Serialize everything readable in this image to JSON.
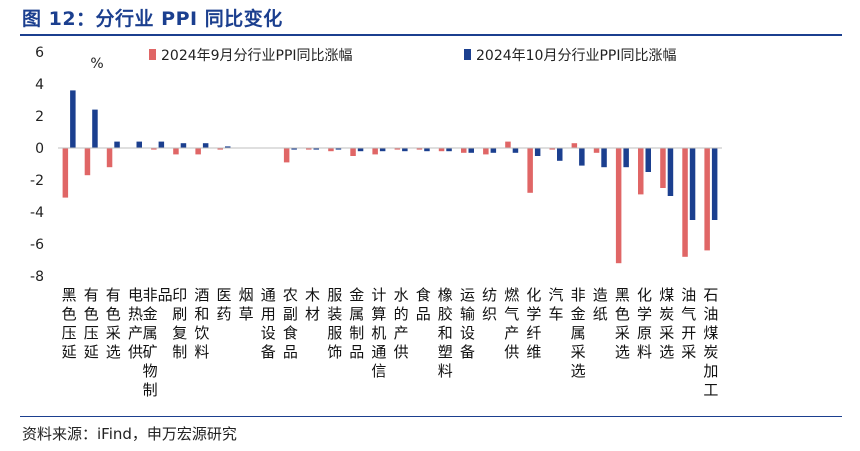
{
  "title": "图 12：分行业 PPI 同比变化",
  "source": "资料来源：iFind，申万宏源研究",
  "colors": {
    "title": "#1b3f8f",
    "sep": "#e06666",
    "oct": "#1b3f8f"
  },
  "chart_data": {
    "type": "bar",
    "unit_label": "%",
    "ylim": [
      -8,
      6
    ],
    "yticks": [
      "6",
      "4",
      "2",
      "0",
      "-2",
      "-4",
      "-6",
      "-8"
    ],
    "legend_position": "top",
    "categories": [
      "黑色压延",
      "有色压延",
      "有色采选",
      "电热产供",
      "非金属矿物制品",
      "印刷复制",
      "酒和饮料",
      "医药",
      "烟草",
      "通用设备",
      "农副食品",
      "木材",
      "服装服饰",
      "金属制品",
      "计算机通信",
      "水的产供",
      "食品",
      "橡胶和塑料",
      "运输设备",
      "纺织",
      "燃气产供",
      "化学纤维",
      "汽车",
      "非金属采选",
      "造纸",
      "黑色采选",
      "化学原料",
      "煤炭采选",
      "油气开采",
      "石油煤炭加工"
    ],
    "series": [
      {
        "name": "2024年9月分行业PPI同比涨幅",
        "values": [
          -3.1,
          -1.7,
          -1.2,
          0.0,
          -0.1,
          -0.4,
          -0.4,
          -0.1,
          0.0,
          0.0,
          -0.9,
          -0.1,
          -0.2,
          -0.5,
          -0.4,
          -0.1,
          -0.1,
          -0.2,
          -0.3,
          -0.4,
          0.4,
          -2.8,
          -0.1,
          0.3,
          -0.3,
          -7.2,
          -2.9,
          -2.5,
          -6.8,
          -6.4
        ]
      },
      {
        "name": "2024年10月分行业PPI同比涨幅",
        "values": [
          3.6,
          2.4,
          0.4,
          0.4,
          0.4,
          0.3,
          0.3,
          0.1,
          0.0,
          0.0,
          -0.1,
          -0.1,
          -0.1,
          -0.2,
          -0.2,
          -0.2,
          -0.2,
          -0.2,
          -0.3,
          -0.3,
          -0.3,
          -0.5,
          -0.8,
          -1.1,
          -1.2,
          -1.2,
          -1.5,
          -3.0,
          -4.5,
          -4.5
        ]
      }
    ]
  }
}
